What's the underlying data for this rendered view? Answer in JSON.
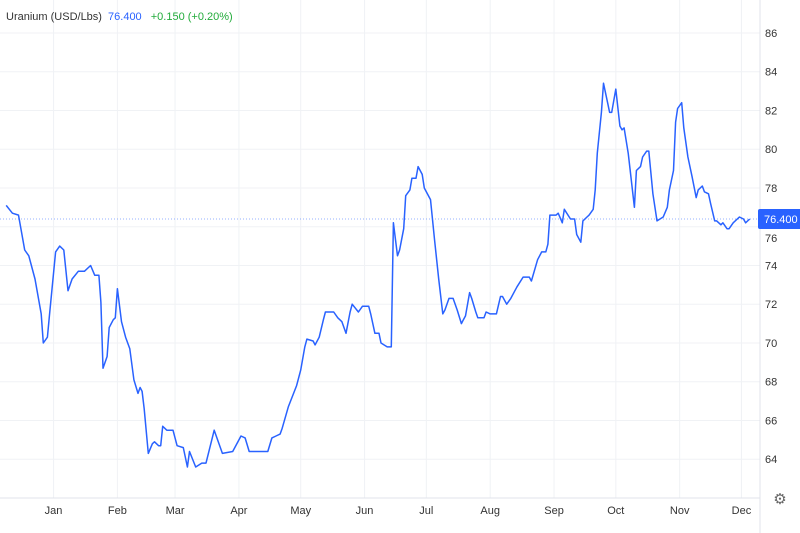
{
  "legend": {
    "name": "Uranium (USD/Lbs)",
    "last": "76.400",
    "change": "+0.150 (+0.20%)"
  },
  "colors": {
    "line": "#2962ff",
    "change_positive": "#22ab3b",
    "grid": "#f0f2f5",
    "price_label_bg": "#2962ff"
  },
  "settings_icon": "gear-icon",
  "chart_data": {
    "type": "line",
    "title": "Uranium (USD/Lbs)",
    "last_value": 76.4,
    "last_value_label": "76.400",
    "ylim": [
      62,
      87.7
    ],
    "xlim": [
      "2024-12-06",
      "2025-12-10"
    ],
    "grid": true,
    "y_axis_side": "right",
    "yticks": [
      64,
      66,
      68,
      70,
      72,
      74,
      76,
      78,
      80,
      82,
      84,
      86
    ],
    "xticks": [
      {
        "date": "2025-01-01",
        "label": "Jan"
      },
      {
        "date": "2025-02-01",
        "label": "Feb"
      },
      {
        "date": "2025-03-01",
        "label": "Mar"
      },
      {
        "date": "2025-04-01",
        "label": "Apr"
      },
      {
        "date": "2025-05-01",
        "label": "May"
      },
      {
        "date": "2025-06-01",
        "label": "Jun"
      },
      {
        "date": "2025-07-01",
        "label": "Jul"
      },
      {
        "date": "2025-08-01",
        "label": "Aug"
      },
      {
        "date": "2025-09-01",
        "label": "Sep"
      },
      {
        "date": "2025-10-01",
        "label": "Oct"
      },
      {
        "date": "2025-11-01",
        "label": "Nov"
      },
      {
        "date": "2025-12-01",
        "label": "Dec"
      }
    ],
    "series": [
      {
        "points": [
          [
            "2024-12-09",
            77.1
          ],
          [
            "2024-12-12",
            76.7
          ],
          [
            "2024-12-15",
            76.6
          ],
          [
            "2024-12-18",
            74.8
          ],
          [
            "2024-12-20",
            74.5
          ],
          [
            "2024-12-23",
            73.3
          ],
          [
            "2024-12-26",
            71.5
          ],
          [
            "2024-12-27",
            70.0
          ],
          [
            "2024-12-29",
            70.3
          ],
          [
            "2024-12-30",
            71.4
          ],
          [
            "2025-01-02",
            74.7
          ],
          [
            "2025-01-04",
            75.0
          ],
          [
            "2025-01-06",
            74.8
          ],
          [
            "2025-01-08",
            72.7
          ],
          [
            "2025-01-10",
            73.3
          ],
          [
            "2025-01-13",
            73.7
          ],
          [
            "2025-01-16",
            73.7
          ],
          [
            "2025-01-19",
            74.0
          ],
          [
            "2025-01-21",
            73.5
          ],
          [
            "2025-01-23",
            73.5
          ],
          [
            "2025-01-24",
            72.1
          ],
          [
            "2025-01-25",
            68.7
          ],
          [
            "2025-01-27",
            69.3
          ],
          [
            "2025-01-28",
            70.8
          ],
          [
            "2025-01-30",
            71.2
          ],
          [
            "2025-01-31",
            71.3
          ],
          [
            "2025-02-01",
            72.8
          ],
          [
            "2025-02-03",
            71.1
          ],
          [
            "2025-02-05",
            70.3
          ],
          [
            "2025-02-07",
            69.7
          ],
          [
            "2025-02-09",
            68.1
          ],
          [
            "2025-02-11",
            67.4
          ],
          [
            "2025-02-12",
            67.7
          ],
          [
            "2025-02-13",
            67.5
          ],
          [
            "2025-02-14",
            66.6
          ],
          [
            "2025-02-16",
            64.3
          ],
          [
            "2025-02-18",
            64.8
          ],
          [
            "2025-02-19",
            64.9
          ],
          [
            "2025-02-21",
            64.7
          ],
          [
            "2025-02-22",
            64.7
          ],
          [
            "2025-02-23",
            65.7
          ],
          [
            "2025-02-25",
            65.5
          ],
          [
            "2025-02-28",
            65.5
          ],
          [
            "2025-03-02",
            64.7
          ],
          [
            "2025-03-05",
            64.6
          ],
          [
            "2025-03-07",
            63.6
          ],
          [
            "2025-03-08",
            64.4
          ],
          [
            "2025-03-11",
            63.6
          ],
          [
            "2025-03-14",
            63.8
          ],
          [
            "2025-03-16",
            63.8
          ],
          [
            "2025-03-20",
            65.5
          ],
          [
            "2025-03-24",
            64.3
          ],
          [
            "2025-03-29",
            64.4
          ],
          [
            "2025-04-02",
            65.2
          ],
          [
            "2025-04-04",
            65.1
          ],
          [
            "2025-04-06",
            64.4
          ],
          [
            "2025-04-15",
            64.4
          ],
          [
            "2025-04-17",
            65.1
          ],
          [
            "2025-04-19",
            65.2
          ],
          [
            "2025-04-21",
            65.3
          ],
          [
            "2025-04-22",
            65.6
          ],
          [
            "2025-04-25",
            66.7
          ],
          [
            "2025-04-29",
            67.8
          ],
          [
            "2025-05-01",
            68.6
          ],
          [
            "2025-05-03",
            69.8
          ],
          [
            "2025-05-04",
            70.2
          ],
          [
            "2025-05-07",
            70.1
          ],
          [
            "2025-05-08",
            69.9
          ],
          [
            "2025-05-10",
            70.3
          ],
          [
            "2025-05-12",
            71.2
          ],
          [
            "2025-05-13",
            71.6
          ],
          [
            "2025-05-17",
            71.6
          ],
          [
            "2025-05-19",
            71.3
          ],
          [
            "2025-05-21",
            71.1
          ],
          [
            "2025-05-23",
            70.5
          ],
          [
            "2025-05-25",
            71.6
          ],
          [
            "2025-05-26",
            72.0
          ],
          [
            "2025-05-29",
            71.6
          ],
          [
            "2025-05-31",
            71.9
          ],
          [
            "2025-06-03",
            71.9
          ],
          [
            "2025-06-04",
            71.5
          ],
          [
            "2025-06-06",
            70.5
          ],
          [
            "2025-06-08",
            70.5
          ],
          [
            "2025-06-09",
            70.0
          ],
          [
            "2025-06-12",
            69.8
          ],
          [
            "2025-06-14",
            69.8
          ],
          [
            "2025-06-15",
            76.2
          ],
          [
            "2025-06-17",
            74.5
          ],
          [
            "2025-06-18",
            74.8
          ],
          [
            "2025-06-20",
            75.9
          ],
          [
            "2025-06-21",
            77.6
          ],
          [
            "2025-06-23",
            77.9
          ],
          [
            "2025-06-24",
            78.5
          ],
          [
            "2025-06-26",
            78.5
          ],
          [
            "2025-06-27",
            79.1
          ],
          [
            "2025-06-29",
            78.7
          ],
          [
            "2025-06-30",
            78.0
          ],
          [
            "2025-07-03",
            77.4
          ],
          [
            "2025-07-05",
            75.3
          ],
          [
            "2025-07-07",
            73.3
          ],
          [
            "2025-07-09",
            71.5
          ],
          [
            "2025-07-10",
            71.7
          ],
          [
            "2025-07-12",
            72.3
          ],
          [
            "2025-07-14",
            72.3
          ],
          [
            "2025-07-16",
            71.7
          ],
          [
            "2025-07-18",
            71.0
          ],
          [
            "2025-07-19",
            71.2
          ],
          [
            "2025-07-20",
            71.4
          ],
          [
            "2025-07-22",
            72.6
          ],
          [
            "2025-07-23",
            72.3
          ],
          [
            "2025-07-25",
            71.6
          ],
          [
            "2025-07-26",
            71.3
          ],
          [
            "2025-07-29",
            71.3
          ],
          [
            "2025-07-30",
            71.6
          ],
          [
            "2025-08-01",
            71.5
          ],
          [
            "2025-08-04",
            71.5
          ],
          [
            "2025-08-06",
            72.4
          ],
          [
            "2025-08-07",
            72.4
          ],
          [
            "2025-08-09",
            72.0
          ],
          [
            "2025-08-11",
            72.3
          ],
          [
            "2025-08-13",
            72.7
          ],
          [
            "2025-08-14",
            72.9
          ],
          [
            "2025-08-17",
            73.4
          ],
          [
            "2025-08-20",
            73.4
          ],
          [
            "2025-08-21",
            73.2
          ],
          [
            "2025-08-24",
            74.3
          ],
          [
            "2025-08-26",
            74.7
          ],
          [
            "2025-08-28",
            74.7
          ],
          [
            "2025-08-29",
            75.1
          ],
          [
            "2025-08-30",
            76.6
          ],
          [
            "2025-09-02",
            76.6
          ],
          [
            "2025-09-03",
            76.7
          ],
          [
            "2025-09-05",
            76.2
          ],
          [
            "2025-09-06",
            76.9
          ],
          [
            "2025-09-09",
            76.4
          ],
          [
            "2025-09-11",
            76.4
          ],
          [
            "2025-09-12",
            75.6
          ],
          [
            "2025-09-14",
            75.2
          ],
          [
            "2025-09-15",
            76.3
          ],
          [
            "2025-09-17",
            76.5
          ],
          [
            "2025-09-18",
            76.6
          ],
          [
            "2025-09-20",
            76.9
          ],
          [
            "2025-09-21",
            77.9
          ],
          [
            "2025-09-22",
            79.8
          ],
          [
            "2025-09-24",
            81.9
          ],
          [
            "2025-09-25",
            83.4
          ],
          [
            "2025-09-27",
            82.4
          ],
          [
            "2025-09-28",
            81.9
          ],
          [
            "2025-09-29",
            81.9
          ],
          [
            "2025-10-01",
            83.1
          ],
          [
            "2025-10-03",
            81.2
          ],
          [
            "2025-10-04",
            81.0
          ],
          [
            "2025-10-05",
            81.1
          ],
          [
            "2025-10-07",
            79.8
          ],
          [
            "2025-10-08",
            78.9
          ],
          [
            "2025-10-10",
            77.0
          ],
          [
            "2025-10-11",
            78.9
          ],
          [
            "2025-10-13",
            79.1
          ],
          [
            "2025-10-14",
            79.6
          ],
          [
            "2025-10-16",
            79.9
          ],
          [
            "2025-10-17",
            79.9
          ],
          [
            "2025-10-19",
            77.7
          ],
          [
            "2025-10-21",
            76.3
          ],
          [
            "2025-10-24",
            76.5
          ],
          [
            "2025-10-26",
            77.0
          ],
          [
            "2025-10-27",
            77.9
          ],
          [
            "2025-10-29",
            78.9
          ],
          [
            "2025-10-30",
            81.4
          ],
          [
            "2025-10-31",
            82.1
          ],
          [
            "2025-11-02",
            82.4
          ],
          [
            "2025-11-03",
            81.1
          ],
          [
            "2025-11-05",
            79.6
          ],
          [
            "2025-11-07",
            78.6
          ],
          [
            "2025-11-09",
            77.5
          ],
          [
            "2025-11-10",
            77.9
          ],
          [
            "2025-11-12",
            78.1
          ],
          [
            "2025-11-13",
            77.8
          ],
          [
            "2025-11-15",
            77.7
          ],
          [
            "2025-11-16",
            77.2
          ],
          [
            "2025-11-18",
            76.3
          ],
          [
            "2025-11-19",
            76.3
          ],
          [
            "2025-11-21",
            76.1
          ],
          [
            "2025-11-22",
            76.2
          ],
          [
            "2025-11-24",
            75.9
          ],
          [
            "2025-11-25",
            75.9
          ],
          [
            "2025-11-27",
            76.2
          ],
          [
            "2025-11-30",
            76.5
          ],
          [
            "2025-12-02",
            76.4
          ],
          [
            "2025-12-03",
            76.2
          ],
          [
            "2025-12-05",
            76.4
          ]
        ]
      }
    ]
  }
}
